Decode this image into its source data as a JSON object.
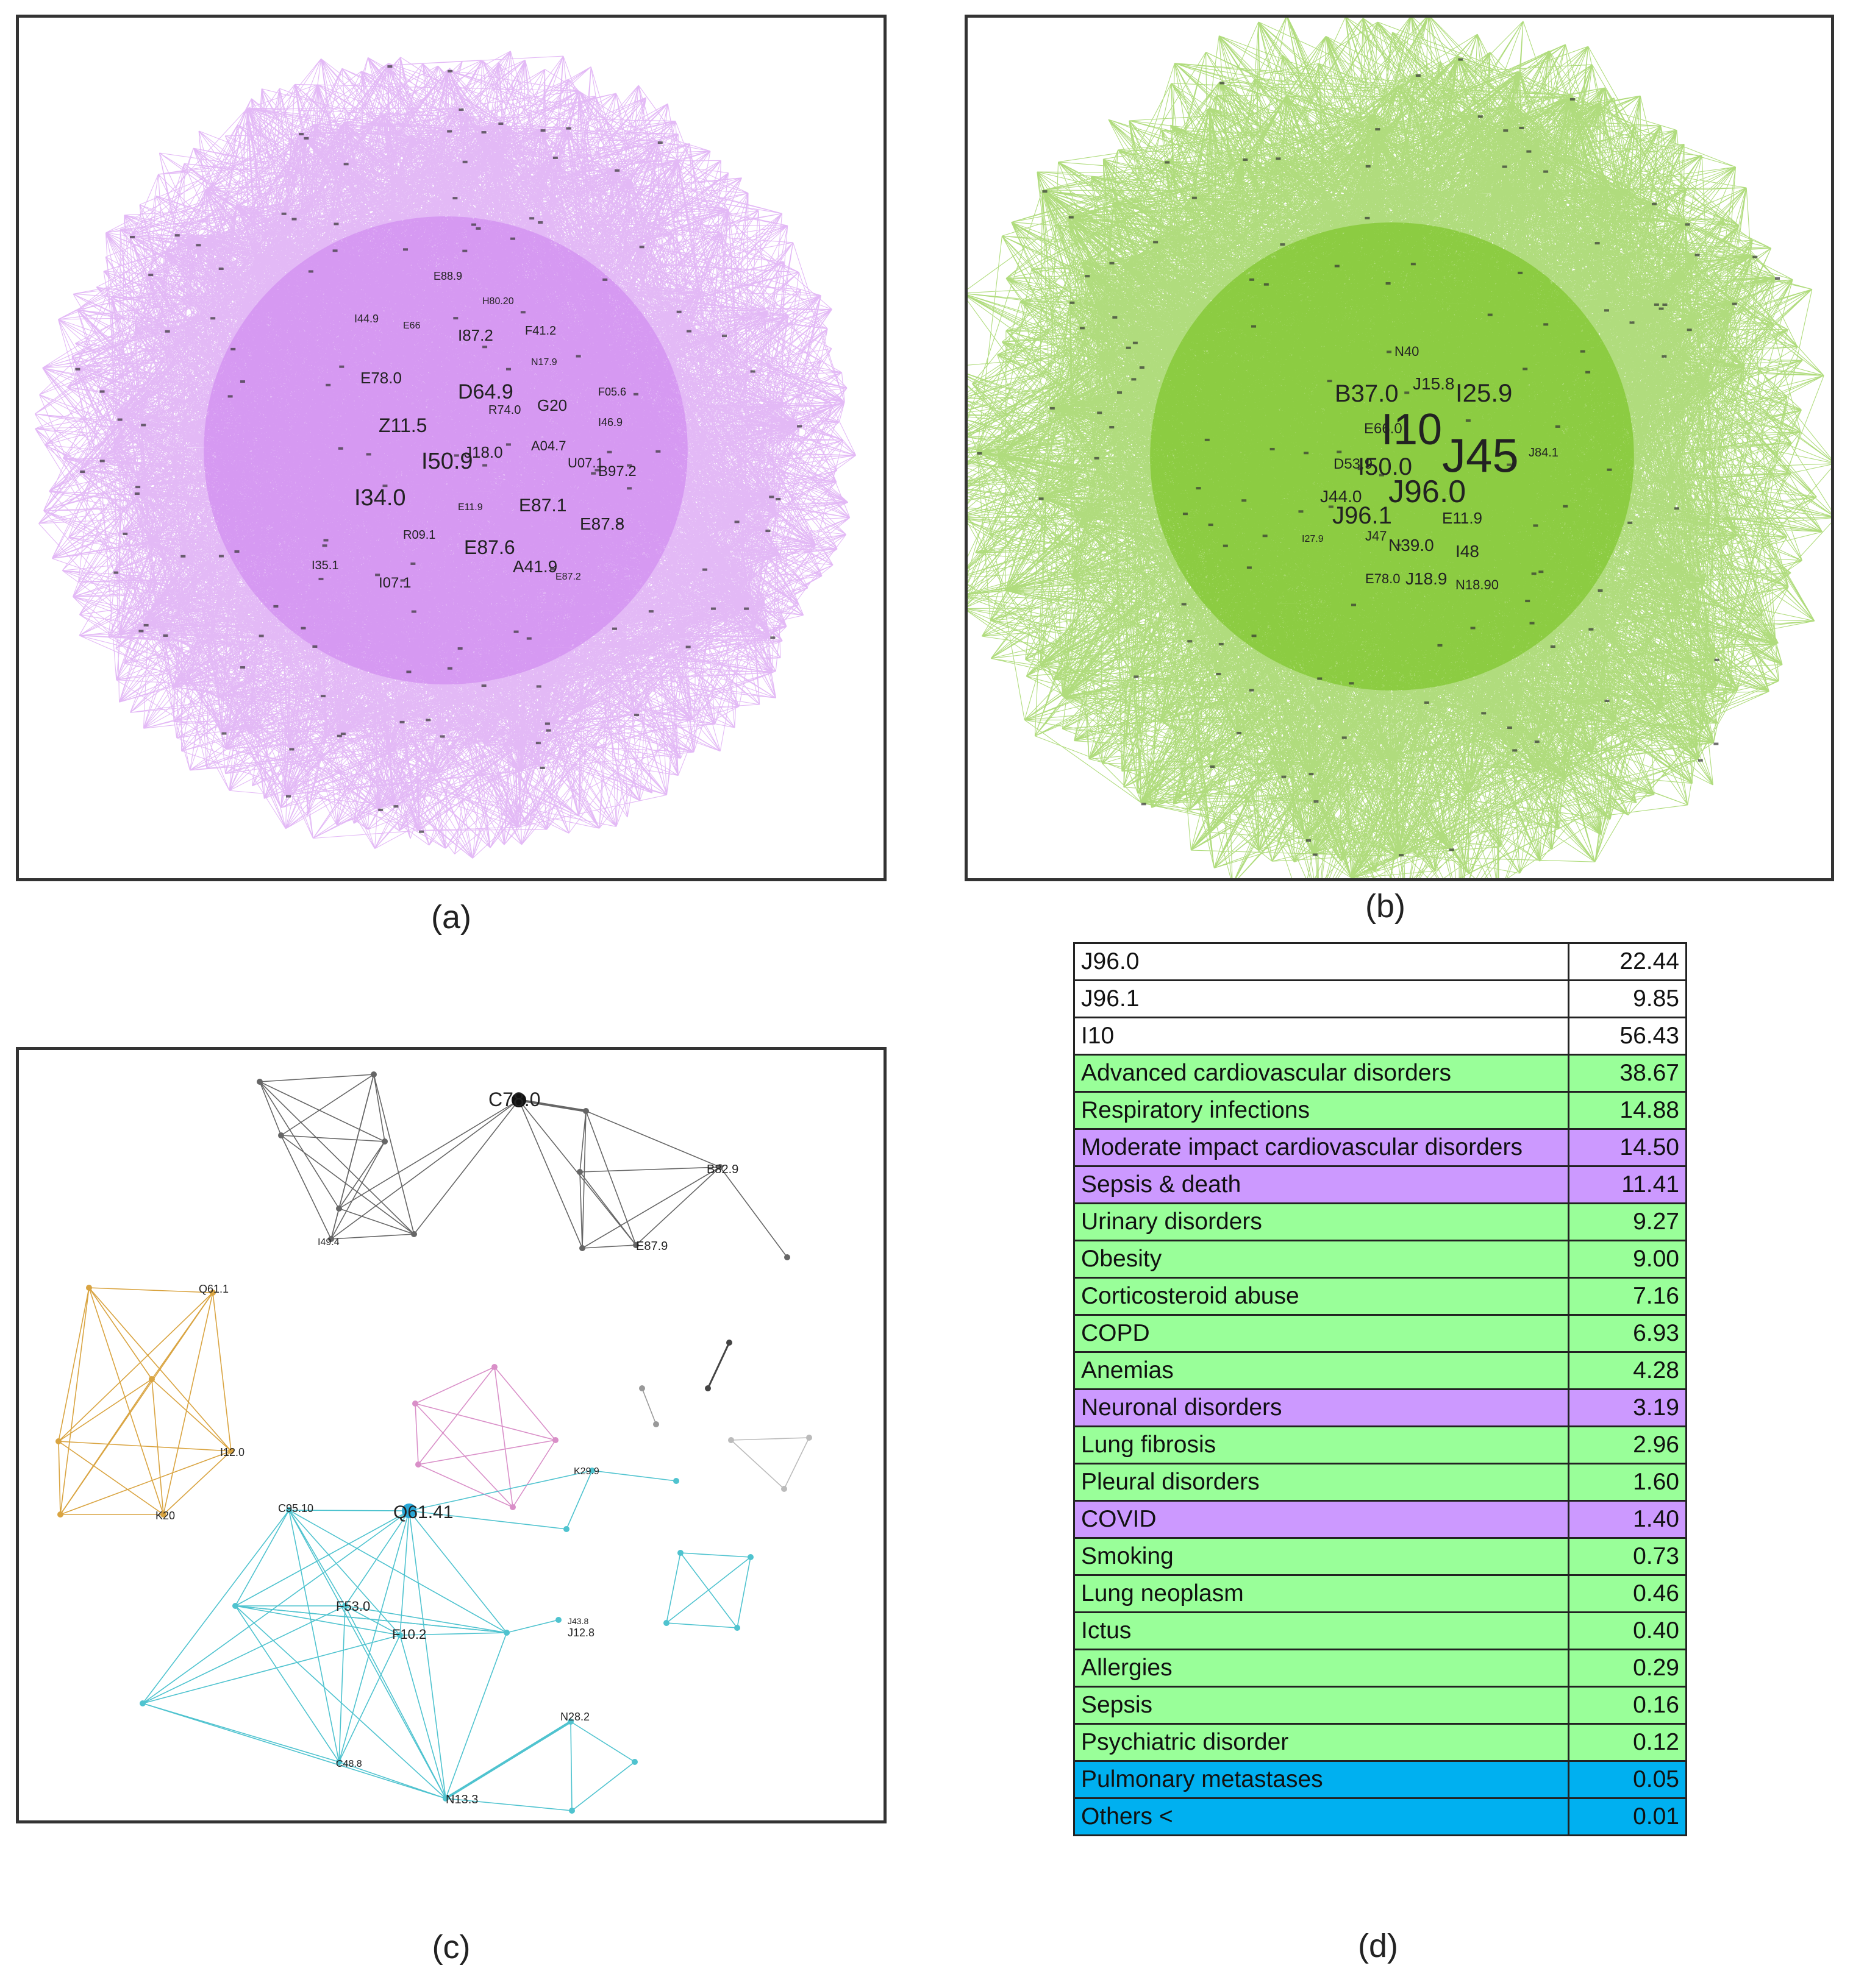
{
  "captions": {
    "a": "(a)",
    "b": "(b)",
    "c": "(c)",
    "d": "(d)"
  },
  "colors": {
    "network_a_edges": "#cc80ee",
    "network_b_edges": "#6fbf12",
    "cluster_black": "#666666",
    "cluster_orange": "#d9a441",
    "cluster_pink": "#d98fc8",
    "cluster_cyan": "#4fc3cf",
    "row_green": "#99ff99",
    "row_purple": "#cc99ff",
    "row_blue": "#00b0f0",
    "row_white": "#ffffff"
  },
  "network_a": {
    "labels": [
      "E88.9",
      "H80.20",
      "I87.2",
      "F41.2",
      "I44.9",
      "E66",
      "E78.0",
      "D64.9",
      "G20",
      "R74.0",
      "F05.6",
      "Z11.5",
      "I50.9",
      "J18.0",
      "A04.7",
      "U07.1",
      "B97.2",
      "I46.9",
      "I34.0",
      "E87.1",
      "E87.8",
      "R09.1",
      "E87.6",
      "A41.9",
      "I35.1",
      "I07.1",
      "N17.9",
      "E11.9",
      "E87.2"
    ]
  },
  "network_b": {
    "labels": [
      "N40",
      "B37.0",
      "J15.8",
      "I25.9",
      "I10",
      "J45",
      "E66.0",
      "D53.9",
      "I50.0",
      "J96.0",
      "J44.0",
      "J96.1",
      "E11.9",
      "J47",
      "N39.0",
      "I48",
      "E78.0",
      "J18.9",
      "N18.90",
      "J84.1",
      "I27.9"
    ]
  },
  "network_c": {
    "labels": [
      "C78.0",
      "B82.9",
      "E87.9",
      "Q61.1",
      "I12.0",
      "K20",
      "I49.4",
      "C95.10",
      "Q61.41",
      "K29.9",
      "F53.0",
      "F10.2",
      "J12.8",
      "N28.2",
      "C48.8",
      "N13.3",
      "J43.8"
    ]
  },
  "table_d": {
    "rows": [
      {
        "label": "J96.0",
        "value": "22.44",
        "color": "white"
      },
      {
        "label": "J96.1",
        "value": "9.85",
        "color": "white"
      },
      {
        "label": "I10",
        "value": "56.43",
        "color": "white"
      },
      {
        "label": "Advanced cardiovascular disorders",
        "value": "38.67",
        "color": "green"
      },
      {
        "label": "Respiratory infections",
        "value": "14.88",
        "color": "green"
      },
      {
        "label": "Moderate impact cardiovascular disorders",
        "value": "14.50",
        "color": "purple"
      },
      {
        "label": "Sepsis & death",
        "value": "11.41",
        "color": "purple"
      },
      {
        "label": "Urinary disorders",
        "value": "9.27",
        "color": "green"
      },
      {
        "label": "Obesity",
        "value": "9.00",
        "color": "green"
      },
      {
        "label": "Corticosteroid abuse",
        "value": "7.16",
        "color": "green"
      },
      {
        "label": "COPD",
        "value": "6.93",
        "color": "green"
      },
      {
        "label": "Anemias",
        "value": "4.28",
        "color": "green"
      },
      {
        "label": "Neuronal disorders",
        "value": "3.19",
        "color": "purple"
      },
      {
        "label": "Lung fibrosis",
        "value": "2.96",
        "color": "green"
      },
      {
        "label": "Pleural disorders",
        "value": "1.60",
        "color": "green"
      },
      {
        "label": "COVID",
        "value": "1.40",
        "color": "purple"
      },
      {
        "label": "Smoking",
        "value": "0.73",
        "color": "green"
      },
      {
        "label": "Lung neoplasm",
        "value": "0.46",
        "color": "green"
      },
      {
        "label": "Ictus",
        "value": "0.40",
        "color": "green"
      },
      {
        "label": "Allergies",
        "value": "0.29",
        "color": "green"
      },
      {
        "label": "Sepsis",
        "value": "0.16",
        "color": "green"
      },
      {
        "label": "Psychiatric disorder",
        "value": "0.12",
        "color": "green"
      },
      {
        "label": "Pulmonary metastases",
        "value": "0.05",
        "color": "blue"
      },
      {
        "label": "Others <",
        "value": "0.01",
        "color": "blue"
      }
    ]
  }
}
